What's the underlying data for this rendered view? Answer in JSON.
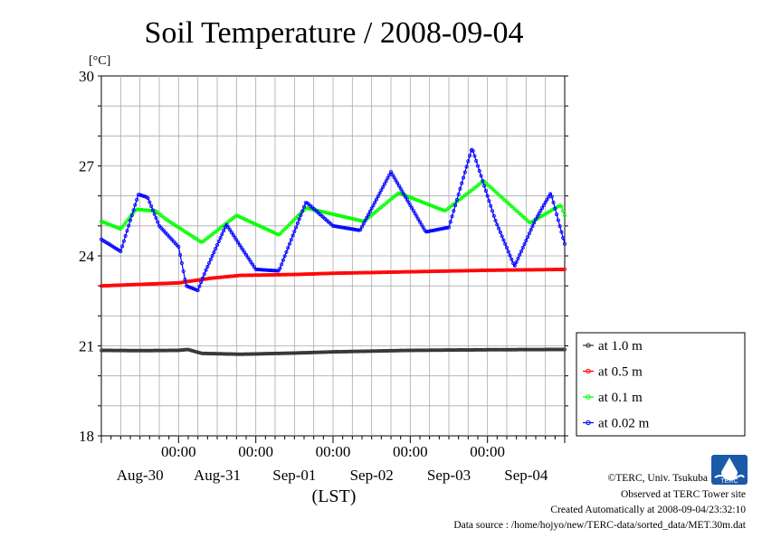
{
  "chart_data": {
    "type": "line",
    "title": "Soil Temperature / 2008-09-04",
    "yunit": "[°C]",
    "xlabel": "(LST)",
    "ylim": [
      18,
      30
    ],
    "yticks": [
      18,
      21,
      24,
      27,
      30
    ],
    "xlim": [
      -1.0,
      5.0
    ],
    "xtick_time_labels": [
      "00:00",
      "00:00",
      "00:00",
      "00:00",
      "00:00"
    ],
    "xtick_date_labels": [
      "Aug-30",
      "Aug-31",
      "Sep-01",
      "Sep-02",
      "Sep-03",
      "Sep-04"
    ],
    "grid": true,
    "legend_position": "right-bottom",
    "series": [
      {
        "name": "at 1.0 m",
        "color": "#333333",
        "points": [
          [
            -1.0,
            20.85
          ],
          [
            -0.5,
            20.84
          ],
          [
            0.0,
            20.85
          ],
          [
            0.12,
            20.88
          ],
          [
            0.3,
            20.75
          ],
          [
            0.8,
            20.72
          ],
          [
            1.5,
            20.76
          ],
          [
            2.0,
            20.8
          ],
          [
            3.0,
            20.85
          ],
          [
            4.0,
            20.87
          ],
          [
            5.0,
            20.88
          ]
        ]
      },
      {
        "name": "at 0.5 m",
        "color": "#ff0000",
        "points": [
          [
            -1.0,
            23.0
          ],
          [
            -0.5,
            23.05
          ],
          [
            0.0,
            23.1
          ],
          [
            0.4,
            23.25
          ],
          [
            0.8,
            23.35
          ],
          [
            1.5,
            23.38
          ],
          [
            2.0,
            23.42
          ],
          [
            3.0,
            23.47
          ],
          [
            4.0,
            23.52
          ],
          [
            5.0,
            23.55
          ]
        ]
      },
      {
        "name": "at 0.1 m",
        "color": "#00ff00",
        "points": [
          [
            -1.0,
            25.15
          ],
          [
            -0.75,
            24.9
          ],
          [
            -0.55,
            25.55
          ],
          [
            -0.3,
            25.5
          ],
          [
            -0.15,
            25.2
          ],
          [
            0.3,
            24.45
          ],
          [
            0.75,
            25.35
          ],
          [
            1.3,
            24.7
          ],
          [
            1.65,
            25.6
          ],
          [
            2.4,
            25.15
          ],
          [
            2.85,
            26.1
          ],
          [
            3.45,
            25.5
          ],
          [
            3.95,
            26.5
          ],
          [
            4.55,
            25.1
          ],
          [
            4.95,
            25.7
          ],
          [
            5.0,
            25.35
          ]
        ]
      },
      {
        "name": "at 0.02 m",
        "color": "#0000ff",
        "points": [
          [
            -1.0,
            24.55
          ],
          [
            -0.75,
            24.15
          ],
          [
            -0.52,
            26.05
          ],
          [
            -0.4,
            25.95
          ],
          [
            -0.25,
            25.0
          ],
          [
            0.0,
            24.3
          ],
          [
            0.1,
            23.0
          ],
          [
            0.25,
            22.85
          ],
          [
            0.35,
            23.5
          ],
          [
            0.62,
            25.05
          ],
          [
            0.82,
            24.25
          ],
          [
            1.0,
            23.55
          ],
          [
            1.3,
            23.5
          ],
          [
            1.65,
            25.8
          ],
          [
            2.0,
            25.0
          ],
          [
            2.35,
            24.85
          ],
          [
            2.75,
            26.8
          ],
          [
            3.2,
            24.8
          ],
          [
            3.5,
            24.95
          ],
          [
            3.8,
            27.6
          ],
          [
            4.1,
            25.2
          ],
          [
            4.35,
            23.65
          ],
          [
            4.62,
            25.2
          ],
          [
            4.82,
            26.1
          ],
          [
            5.0,
            24.4
          ]
        ]
      }
    ]
  },
  "footer": {
    "copyright": "©TERC, Univ. Tsukuba",
    "observed": "Observed at TERC Tower site",
    "created": "Created Automatically at 2008-09-04/23:32:10",
    "source": "Data source : /home/hojyo/new/TERC-data/sorted_data/MET.30m.dat"
  },
  "logo": {
    "text": "TERC",
    "color": "#1a5aa8"
  }
}
